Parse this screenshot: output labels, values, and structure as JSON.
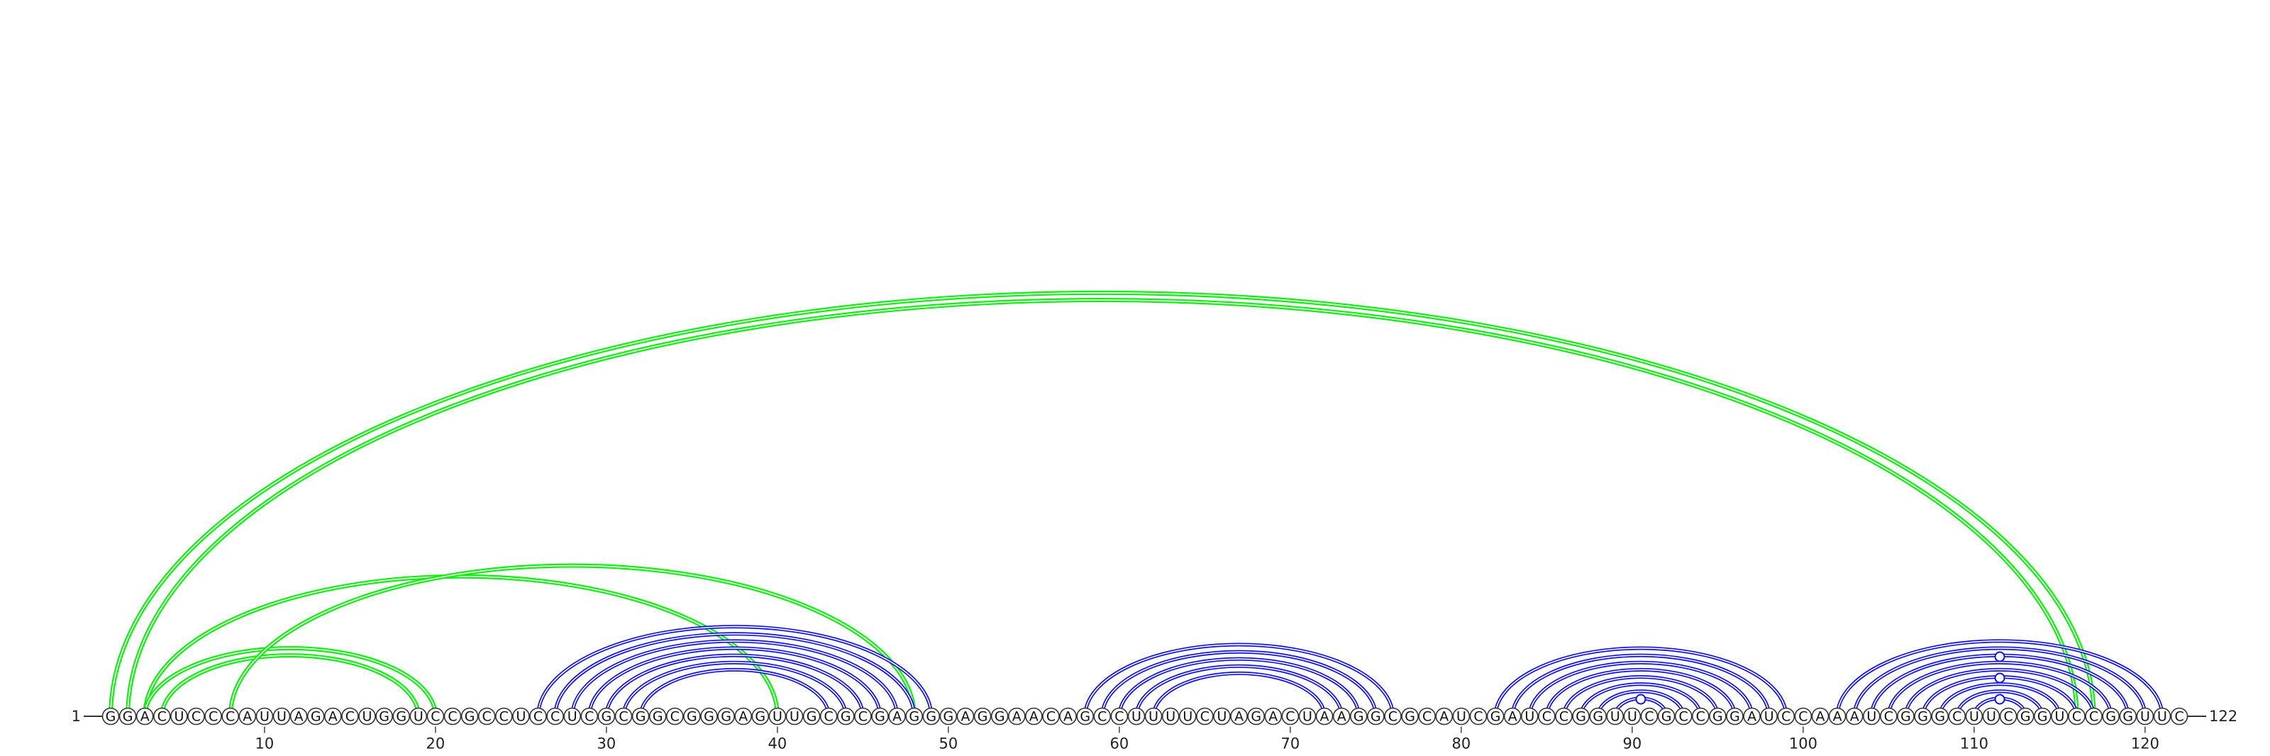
{
  "chart_data": {
    "type": "arc-diagram",
    "sequence": "GGACUCCCAUUAGACUGGUCCGCCUCCUCGCGGCGGGAGUUGCGCGAGGGAGGAACAGCCUUUUCUAGACUAAGGCGCAUCGAUCCGGUUCGCCGGAUCCAAAUCGGGCUUCGGUCCGGUUC",
    "length": 122,
    "start_label": "1",
    "end_label": "122",
    "tick_labels": [
      "10",
      "20",
      "30",
      "40",
      "50",
      "60",
      "70",
      "80",
      "90",
      "100",
      "110",
      "120"
    ],
    "colors": {
      "nested_pairs": "#1010ee",
      "crossing_pairs": "#11ee11",
      "outline": "#333333"
    },
    "pairs": [
      {
        "i": 1,
        "j": 117,
        "group": "crossing"
      },
      {
        "i": 2,
        "j": 116,
        "group": "crossing"
      },
      {
        "i": 3,
        "j": 40,
        "group": "crossing"
      },
      {
        "i": 4,
        "j": 19,
        "group": "crossing"
      },
      {
        "i": 3,
        "j": 20,
        "group": "crossing"
      },
      {
        "i": 8,
        "j": 48,
        "group": "crossing"
      },
      {
        "i": 26,
        "j": 49,
        "group": "nested"
      },
      {
        "i": 27,
        "j": 48,
        "group": "nested"
      },
      {
        "i": 28,
        "j": 47,
        "group": "nested"
      },
      {
        "i": 29,
        "j": 46,
        "group": "nested"
      },
      {
        "i": 30,
        "j": 45,
        "group": "nested"
      },
      {
        "i": 31,
        "j": 44,
        "group": "nested"
      },
      {
        "i": 32,
        "j": 43,
        "group": "nested"
      },
      {
        "i": 58,
        "j": 76,
        "group": "nested"
      },
      {
        "i": 59,
        "j": 75,
        "group": "nested"
      },
      {
        "i": 60,
        "j": 74,
        "group": "nested"
      },
      {
        "i": 61,
        "j": 73,
        "group": "nested"
      },
      {
        "i": 62,
        "j": 72,
        "group": "nested"
      },
      {
        "i": 82,
        "j": 99,
        "group": "nested"
      },
      {
        "i": 83,
        "j": 98,
        "group": "nested"
      },
      {
        "i": 84,
        "j": 97,
        "group": "nested"
      },
      {
        "i": 85,
        "j": 96,
        "group": "nested"
      },
      {
        "i": 86,
        "j": 95,
        "group": "nested"
      },
      {
        "i": 87,
        "j": 94,
        "group": "nested"
      },
      {
        "i": 88,
        "j": 93,
        "group": "nested"
      },
      {
        "i": 89,
        "j": 92,
        "group": "nested"
      },
      {
        "i": 102,
        "j": 121,
        "group": "nested"
      },
      {
        "i": 103,
        "j": 120,
        "group": "nested"
      },
      {
        "i": 104,
        "j": 119,
        "group": "nested"
      },
      {
        "i": 105,
        "j": 118,
        "group": "nested"
      },
      {
        "i": 106,
        "j": 117,
        "group": "nested"
      },
      {
        "i": 107,
        "j": 116,
        "group": "nested"
      },
      {
        "i": 108,
        "j": 115,
        "group": "nested"
      },
      {
        "i": 109,
        "j": 114,
        "group": "nested"
      },
      {
        "i": 110,
        "j": 113,
        "group": "nested"
      }
    ],
    "markers": [
      {
        "position": 90.5,
        "level": 1
      },
      {
        "position": 111.5,
        "level": 1
      },
      {
        "position": 111.5,
        "level": 2
      },
      {
        "position": 111.5,
        "level": 3
      }
    ]
  }
}
